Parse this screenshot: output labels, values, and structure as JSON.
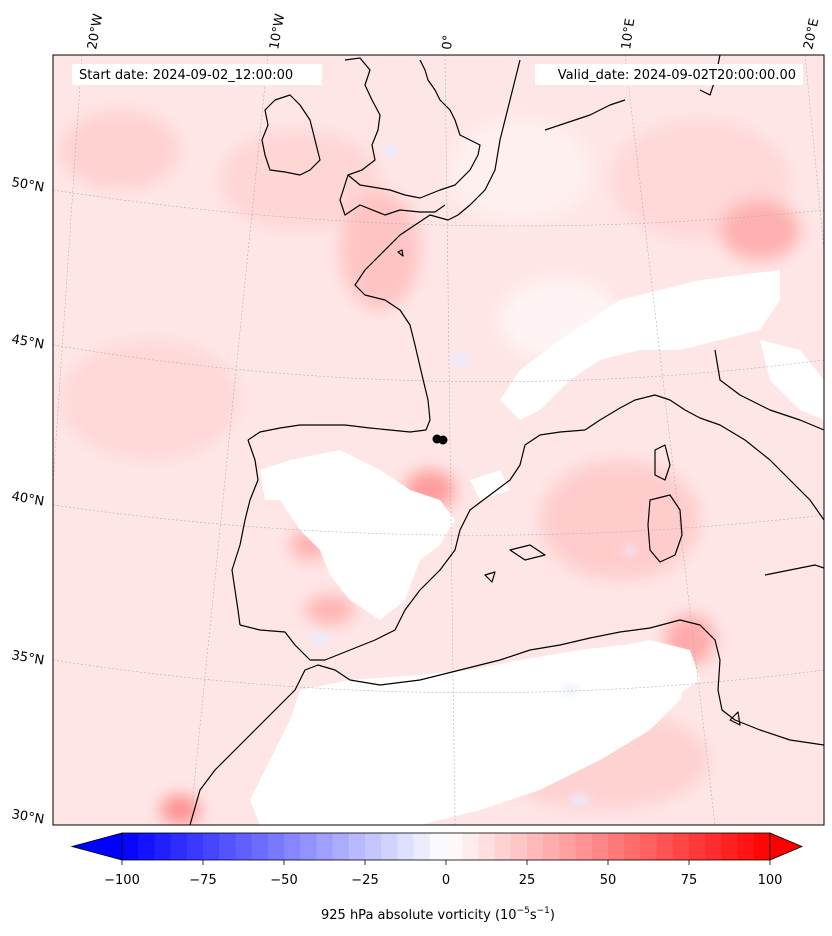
{
  "map": {
    "header_left": "Start date: 2024-09-02_12:00:00",
    "header_right": "Valid_date: 2024-09-02T20:00:00.00",
    "lon_labels": [
      "20°W",
      "10°W",
      "0°",
      "10°E",
      "20°E"
    ],
    "lat_labels": [
      "50°N",
      "45°N",
      "40°N",
      "35°N",
      "30°N"
    ],
    "marker": "storm-center-dot"
  },
  "colorbar": {
    "label": "925 hPa absolute vorticity (10",
    "label_exp1": "−5",
    "label_mid": "s",
    "label_exp2": "−1",
    "label_end": ")",
    "ticks": [
      "−100",
      "−75",
      "−50",
      "−25",
      "0",
      "25",
      "50",
      "75",
      "100"
    ],
    "range": [
      -100,
      100
    ],
    "colors": {
      "negative": "#0000ff",
      "zero": "#ffffff",
      "positive": "#ff0000"
    }
  }
}
